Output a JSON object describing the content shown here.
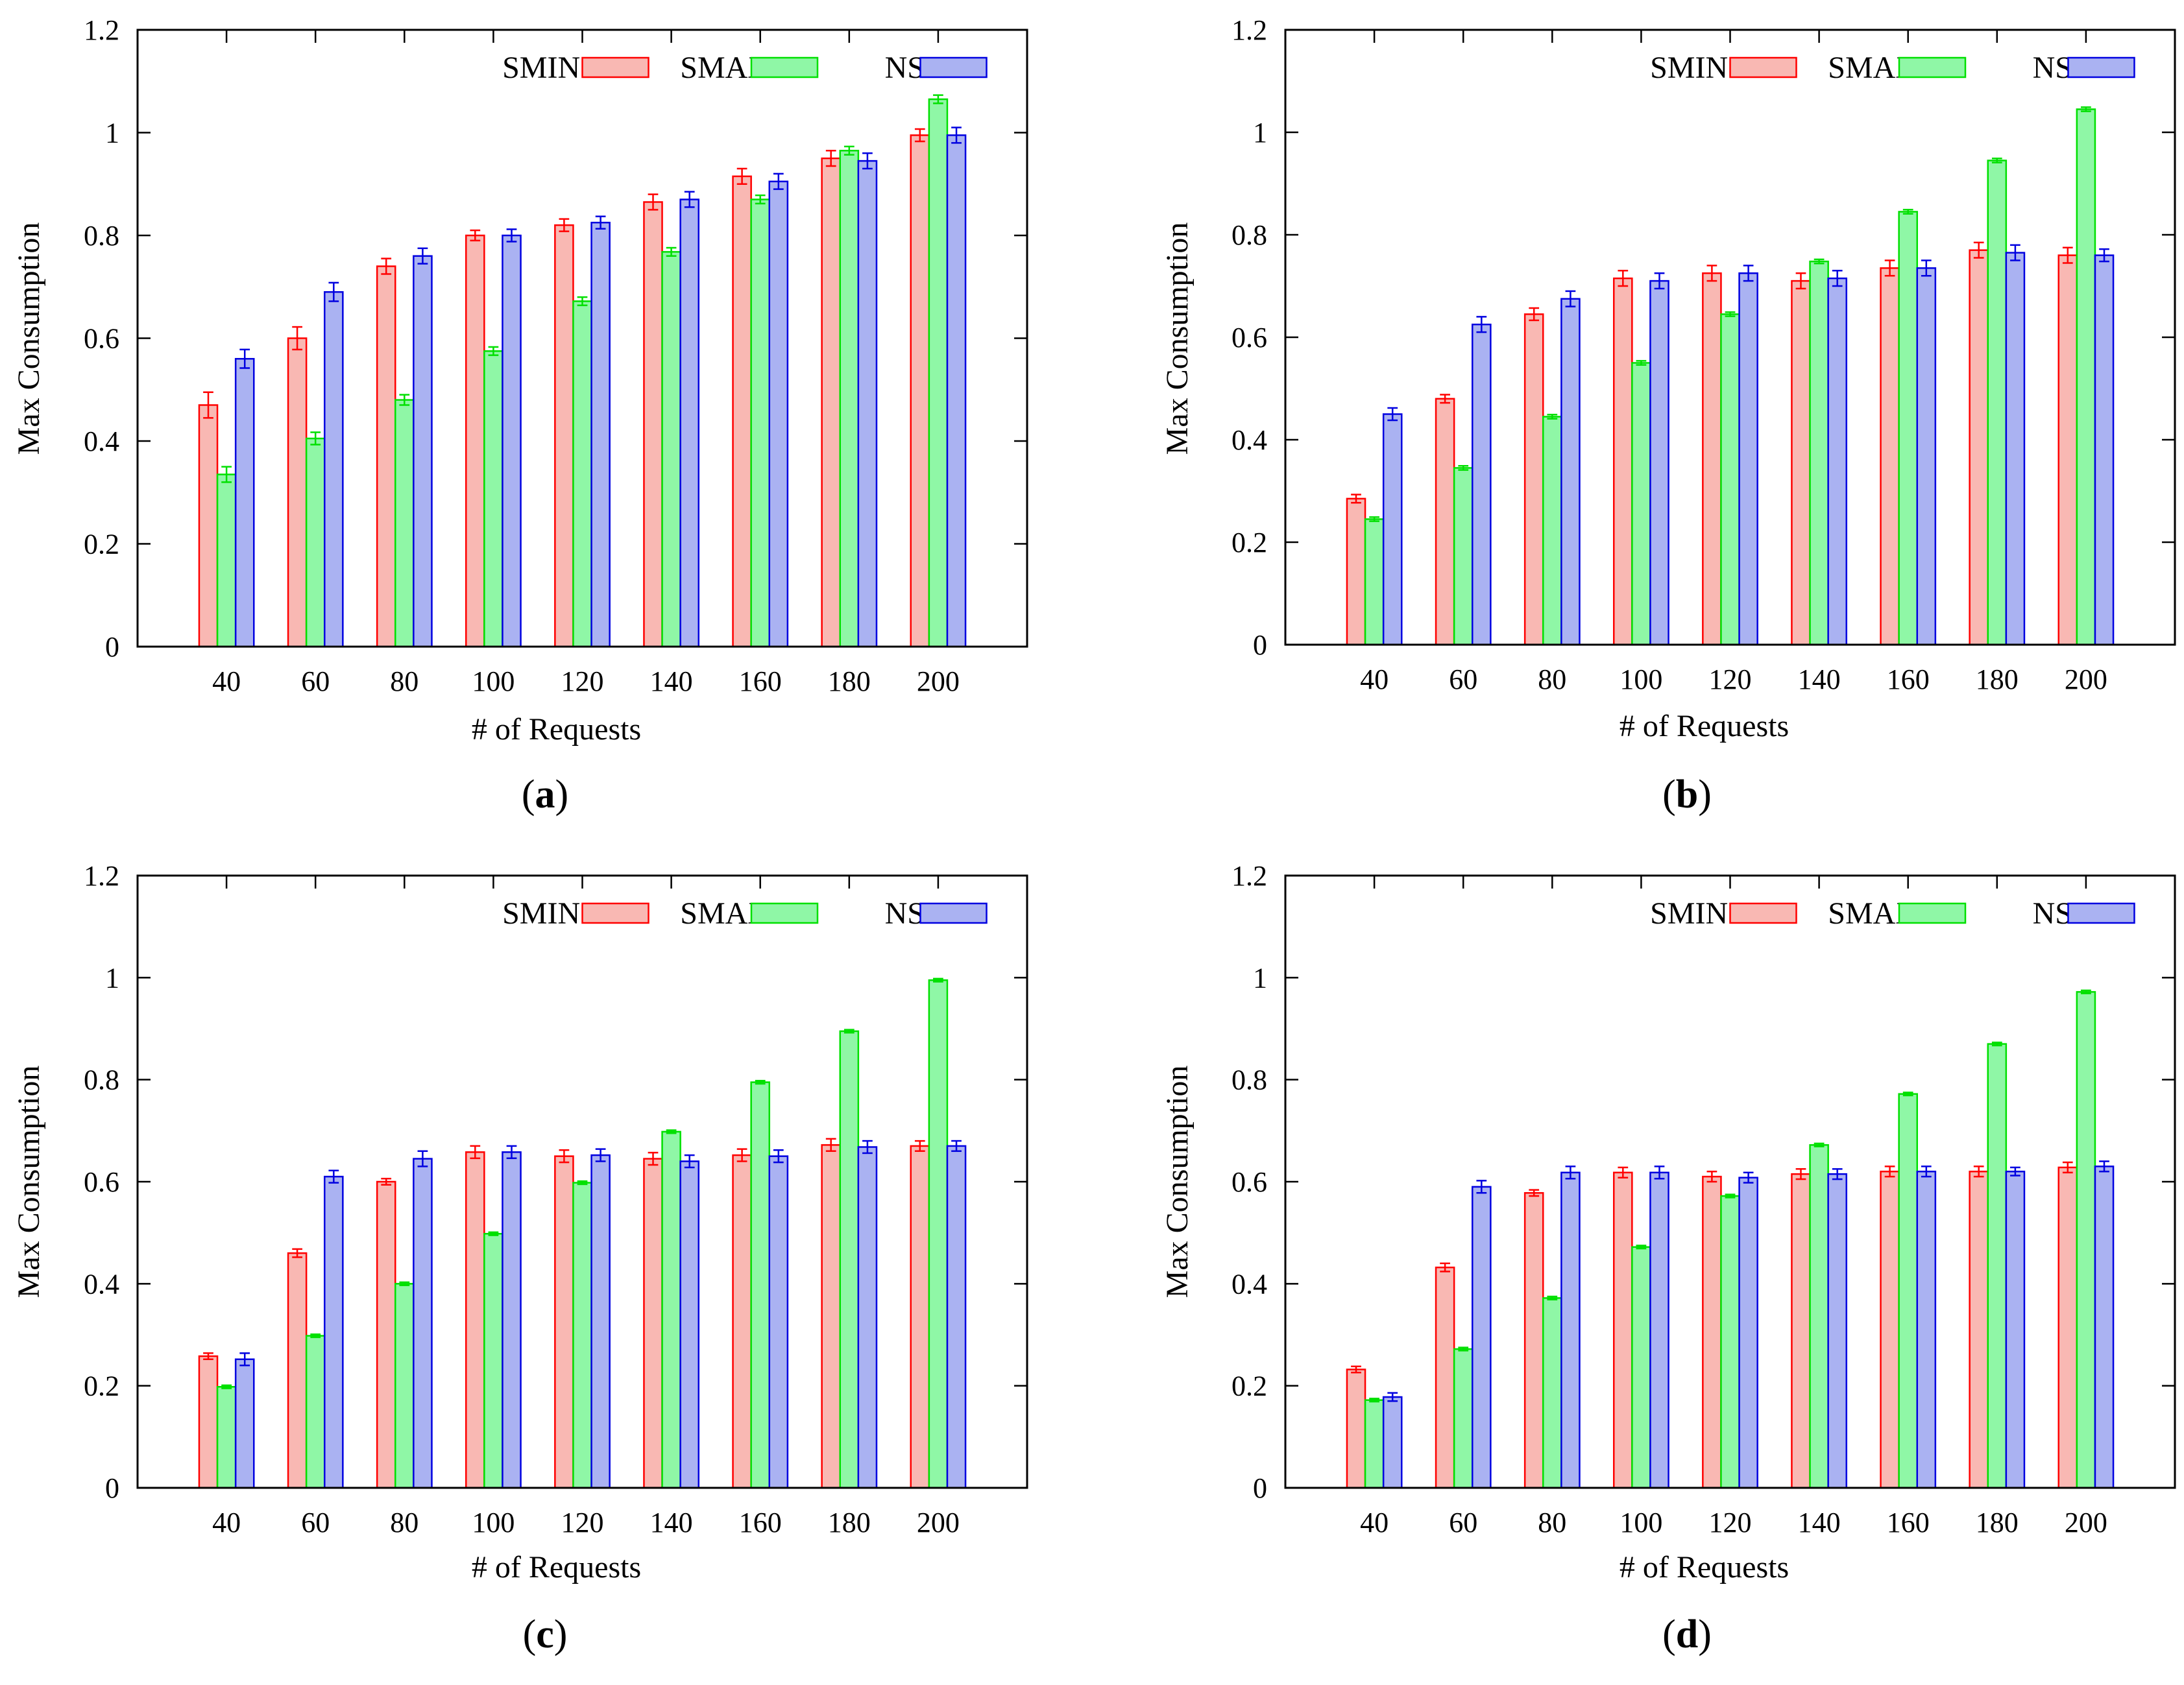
{
  "colors": {
    "SMIN": {
      "stroke": "#ff0000",
      "fill": "#f9b8b3"
    },
    "SMAX": {
      "stroke": "#00e000",
      "fill": "#8ff7a6"
    },
    "NS": {
      "stroke": "#0000e0",
      "fill": "#aab2f2"
    }
  },
  "chart_data": [
    {
      "panel": "a",
      "type": "bar",
      "xlabel": "# of Requests",
      "ylabel": "Max Consumption",
      "ylim": [
        0,
        1.2
      ],
      "yticks": [
        "0",
        "0.2",
        "0.4",
        "0.6",
        "0.8",
        "1",
        "1.2"
      ],
      "categories": [
        "40",
        "60",
        "80",
        "100",
        "120",
        "140",
        "160",
        "180",
        "200"
      ],
      "legend_position": "top-right",
      "series": [
        {
          "name": "SMIN",
          "values": [
            0.47,
            0.6,
            0.74,
            0.8,
            0.82,
            0.865,
            0.915,
            0.95,
            0.995
          ],
          "errors": [
            0.025,
            0.022,
            0.015,
            0.01,
            0.012,
            0.015,
            0.015,
            0.015,
            0.012
          ]
        },
        {
          "name": "SMAX",
          "values": [
            0.335,
            0.405,
            0.48,
            0.575,
            0.672,
            0.768,
            0.87,
            0.965,
            1.065
          ],
          "errors": [
            0.015,
            0.012,
            0.01,
            0.008,
            0.008,
            0.008,
            0.008,
            0.008,
            0.008
          ]
        },
        {
          "name": "NS",
          "values": [
            0.56,
            0.69,
            0.76,
            0.8,
            0.825,
            0.87,
            0.905,
            0.945,
            0.995
          ],
          "errors": [
            0.018,
            0.018,
            0.015,
            0.012,
            0.012,
            0.015,
            0.015,
            0.015,
            0.015
          ]
        }
      ]
    },
    {
      "panel": "b",
      "type": "bar",
      "xlabel": "# of Requests",
      "ylabel": "Max Consumption",
      "ylim": [
        0,
        1.2
      ],
      "yticks": [
        "0",
        "0.2",
        "0.4",
        "0.6",
        "0.8",
        "1",
        "1.2"
      ],
      "categories": [
        "40",
        "60",
        "80",
        "100",
        "120",
        "140",
        "160",
        "180",
        "200"
      ],
      "legend_position": "top-right",
      "series": [
        {
          "name": "SMIN",
          "values": [
            0.285,
            0.48,
            0.645,
            0.715,
            0.725,
            0.71,
            0.735,
            0.77,
            0.76
          ],
          "errors": [
            0.008,
            0.008,
            0.012,
            0.015,
            0.015,
            0.015,
            0.015,
            0.015,
            0.015
          ]
        },
        {
          "name": "SMAX",
          "values": [
            0.245,
            0.345,
            0.445,
            0.55,
            0.645,
            0.748,
            0.845,
            0.945,
            1.045
          ],
          "errors": [
            0.004,
            0.004,
            0.004,
            0.004,
            0.004,
            0.004,
            0.004,
            0.004,
            0.004
          ]
        },
        {
          "name": "NS",
          "values": [
            0.45,
            0.625,
            0.675,
            0.71,
            0.725,
            0.715,
            0.735,
            0.765,
            0.76
          ],
          "errors": [
            0.012,
            0.015,
            0.015,
            0.015,
            0.015,
            0.015,
            0.015,
            0.015,
            0.012
          ]
        }
      ]
    },
    {
      "panel": "c",
      "type": "bar",
      "xlabel": "# of Requests",
      "ylabel": "Max Consumption",
      "ylim": [
        0,
        1.2
      ],
      "yticks": [
        "0",
        "0.2",
        "0.4",
        "0.6",
        "0.8",
        "1",
        "1.2"
      ],
      "categories": [
        "40",
        "60",
        "80",
        "100",
        "120",
        "140",
        "160",
        "180",
        "200"
      ],
      "legend_position": "top-right",
      "series": [
        {
          "name": "SMIN",
          "values": [
            0.258,
            0.46,
            0.6,
            0.658,
            0.65,
            0.645,
            0.652,
            0.672,
            0.67
          ],
          "errors": [
            0.006,
            0.008,
            0.006,
            0.012,
            0.012,
            0.012,
            0.012,
            0.012,
            0.01
          ]
        },
        {
          "name": "SMAX",
          "values": [
            0.198,
            0.298,
            0.4,
            0.498,
            0.598,
            0.698,
            0.795,
            0.895,
            0.995
          ],
          "errors": [
            0.003,
            0.003,
            0.003,
            0.003,
            0.003,
            0.003,
            0.003,
            0.003,
            0.003
          ]
        },
        {
          "name": "NS",
          "values": [
            0.252,
            0.61,
            0.645,
            0.658,
            0.652,
            0.64,
            0.65,
            0.668,
            0.67
          ],
          "errors": [
            0.012,
            0.012,
            0.015,
            0.012,
            0.012,
            0.012,
            0.012,
            0.012,
            0.01
          ]
        }
      ]
    },
    {
      "panel": "d",
      "type": "bar",
      "xlabel": "# of Requests",
      "ylabel": "Max Consumption",
      "ylim": [
        0,
        1.2
      ],
      "yticks": [
        "0",
        "0.2",
        "0.4",
        "0.6",
        "0.8",
        "1",
        "1.2"
      ],
      "categories": [
        "40",
        "60",
        "80",
        "100",
        "120",
        "140",
        "160",
        "180",
        "200"
      ],
      "legend_position": "top-right",
      "series": [
        {
          "name": "SMIN",
          "values": [
            0.232,
            0.432,
            0.578,
            0.618,
            0.61,
            0.615,
            0.62,
            0.62,
            0.628
          ],
          "errors": [
            0.006,
            0.008,
            0.006,
            0.01,
            0.01,
            0.01,
            0.01,
            0.01,
            0.01
          ]
        },
        {
          "name": "SMAX",
          "values": [
            0.172,
            0.272,
            0.372,
            0.472,
            0.572,
            0.672,
            0.772,
            0.87,
            0.972
          ],
          "errors": [
            0.003,
            0.003,
            0.003,
            0.003,
            0.003,
            0.003,
            0.003,
            0.003,
            0.003
          ]
        },
        {
          "name": "NS",
          "values": [
            0.178,
            0.59,
            0.618,
            0.618,
            0.608,
            0.615,
            0.62,
            0.62,
            0.63
          ],
          "errors": [
            0.008,
            0.012,
            0.012,
            0.012,
            0.01,
            0.01,
            0.01,
            0.008,
            0.01
          ]
        }
      ]
    }
  ],
  "panel_labels": [
    {
      "open": "(",
      "letter": "a",
      "close": ")"
    },
    {
      "open": "(",
      "letter": "b",
      "close": ")"
    },
    {
      "open": "(",
      "letter": "c",
      "close": ")"
    },
    {
      "open": "(",
      "letter": "d",
      "close": ")"
    }
  ]
}
